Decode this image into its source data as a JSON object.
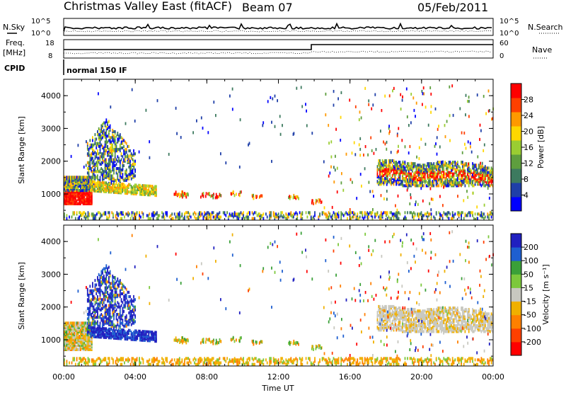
{
  "header": {
    "title": "Christmas Valley East (fitACF)",
    "beam": "Beam 07",
    "date": "05/Feb/2011"
  },
  "top_panels": {
    "nsky_label": "N.Sky",
    "nsearch_label": "N.Search",
    "freq_label_1": "Freq.",
    "freq_label_2": "[MHz]",
    "nave_label": "Nave",
    "cpid_label": "CPID",
    "cpid_text": "normal 150 IF",
    "noise_left_ticks": [
      "10^5",
      "10^0"
    ],
    "noise_right_ticks": [
      "10^5",
      "10^0"
    ],
    "freq_left_ticks": [
      "18",
      "8"
    ],
    "freq_right_ticks": [
      "60",
      "0"
    ]
  },
  "colors": {
    "power": [
      "#0000ff",
      "#1f3fa8",
      "#3d7a5f",
      "#5e9e3e",
      "#9acd32",
      "#ffd700",
      "#ff9900",
      "#ff4000",
      "#ff0000"
    ],
    "velocity": [
      "#2020c0",
      "#1e5fd0",
      "#3aa038",
      "#7cc83c",
      "#c8c8c0",
      "#f0b000",
      "#ff8000",
      "#ff4000",
      "#ff0000"
    ]
  },
  "chart_data": [
    {
      "type": "heatmap",
      "name": "power",
      "ylabel": "Slant Range [km]",
      "yticks": [
        "1000",
        "2000",
        "3000",
        "4000"
      ],
      "ylim": [
        200,
        4500
      ],
      "colorbar_label": "Power [dB]",
      "colorbar_ticks": [
        "4",
        "8",
        "12",
        "16",
        "20",
        "24",
        "28"
      ],
      "clim": [
        0,
        30
      ]
    },
    {
      "type": "heatmap",
      "name": "velocity",
      "ylabel": "Slant Range [km]",
      "yticks": [
        "1000",
        "2000",
        "3000",
        "4000"
      ],
      "ylim": [
        200,
        4500
      ],
      "colorbar_label": "Velocity [m s⁻¹]",
      "colorbar_ticks": [
        "200",
        "100",
        "50",
        "15",
        "-15",
        "-50",
        "-100",
        "-200"
      ],
      "clim": [
        -250,
        250
      ]
    }
  ],
  "x_axis": {
    "label": "Time UT",
    "ticks": [
      "00:00",
      "04:00",
      "08:00",
      "12:00",
      "16:00",
      "20:00",
      "00:00"
    ]
  }
}
